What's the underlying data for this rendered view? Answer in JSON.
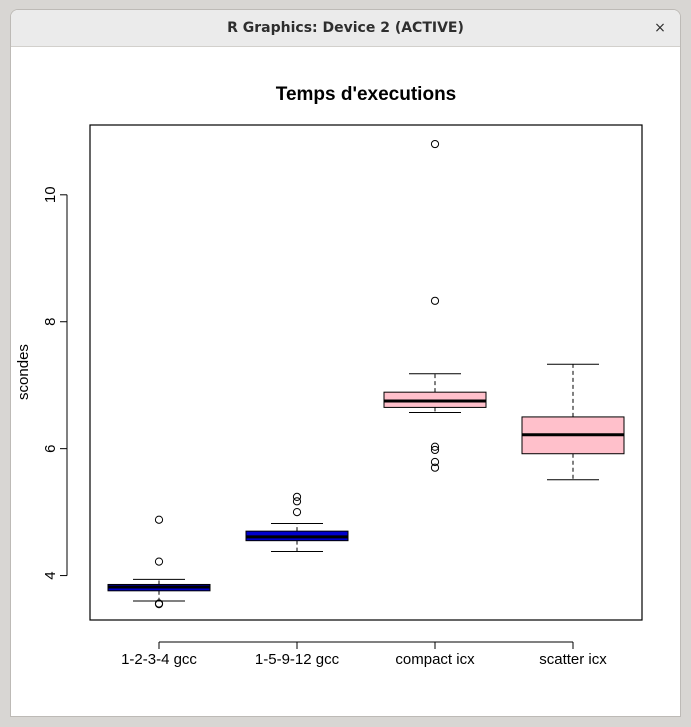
{
  "window": {
    "title": "R Graphics: Device 2 (ACTIVE)",
    "close_icon": "×"
  },
  "chart_data": {
    "type": "boxplot",
    "title": "Temps d'executions",
    "xlabel": "",
    "ylabel": "scondes",
    "ylim": [
      3.3,
      11.1
    ],
    "yticks": [
      4,
      6,
      8,
      10
    ],
    "categories": [
      "1-2-3-4 gcc",
      "1-5-9-12 gcc",
      "compact icx",
      "scatter icx"
    ],
    "boxes": [
      {
        "name": "1-2-3-4 gcc",
        "fill": "#0000cd",
        "whisker_low": 3.6,
        "q1": 3.76,
        "median": 3.82,
        "q3": 3.86,
        "whisker_high": 3.94,
        "outliers": [
          4.88,
          4.22,
          3.56,
          3.55
        ]
      },
      {
        "name": "1-5-9-12 gcc",
        "fill": "#0000cd",
        "whisker_low": 4.38,
        "q1": 4.55,
        "median": 4.61,
        "q3": 4.7,
        "whisker_high": 4.82,
        "outliers": [
          5.24,
          5.17,
          5.0
        ]
      },
      {
        "name": "compact icx",
        "fill": "#ffc0cb",
        "whisker_low": 6.57,
        "q1": 6.65,
        "median": 6.75,
        "q3": 6.89,
        "whisker_high": 7.18,
        "outliers": [
          10.8,
          8.33,
          6.03,
          5.98,
          5.79,
          5.7
        ]
      },
      {
        "name": "scatter icx",
        "fill": "#ffc0cb",
        "whisker_low": 5.51,
        "q1": 5.92,
        "median": 6.22,
        "q3": 6.5,
        "whisker_high": 7.33,
        "outliers": []
      }
    ]
  }
}
